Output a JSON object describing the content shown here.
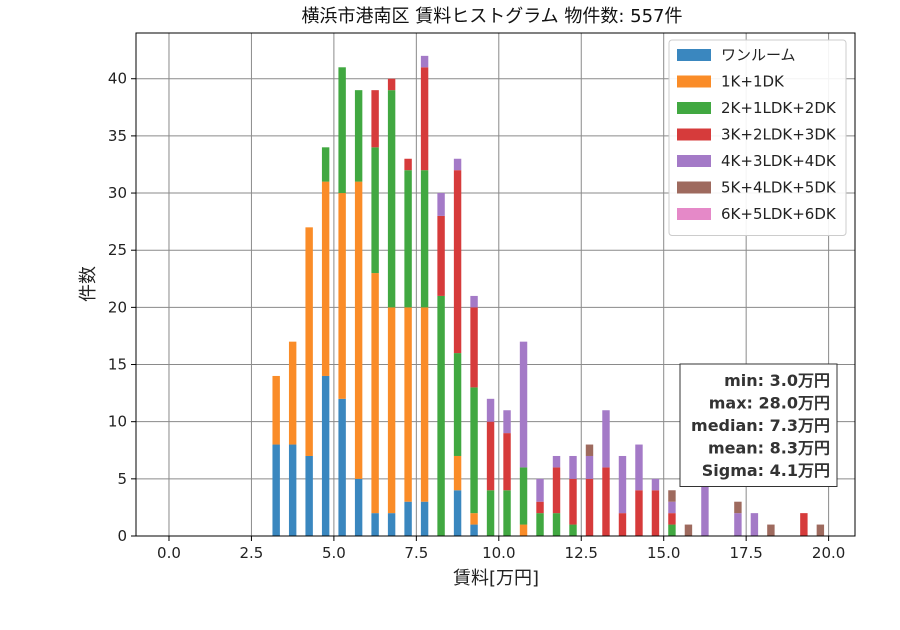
{
  "chart_data": {
    "type": "bar",
    "stacked": true,
    "title": "横浜市港南区 賃料ヒストグラム 物件数: 557件",
    "xlabel": "賃料[万円]",
    "ylabel": "件数",
    "xlim": [
      -1.0,
      20.8
    ],
    "ylim": [
      0,
      44
    ],
    "xticks": [
      0.0,
      2.5,
      5.0,
      7.5,
      10.0,
      12.5,
      15.0,
      17.5,
      20.0
    ],
    "xtick_labels": [
      "0.0",
      "2.5",
      "5.0",
      "7.5",
      "10.0",
      "12.5",
      "15.0",
      "17.5",
      "20.0"
    ],
    "yticks": [
      0,
      5,
      10,
      15,
      20,
      25,
      30,
      35,
      40
    ],
    "ytick_labels": [
      "0",
      "5",
      "10",
      "15",
      "20",
      "25",
      "30",
      "35",
      "40"
    ],
    "grid": true,
    "legend_position": "top-right",
    "bin_width": 0.25,
    "bar_width": 0.225,
    "x": [
      3.0,
      3.25,
      3.5,
      3.75,
      4.0,
      4.25,
      4.5,
      4.75,
      5.0,
      5.25,
      5.5,
      5.75,
      6.0,
      6.25,
      6.5,
      6.75,
      7.0,
      7.25,
      7.5,
      7.75,
      8.0,
      8.25,
      8.5,
      8.75,
      9.0,
      9.25,
      9.5,
      9.75,
      10.0,
      10.25,
      10.5,
      10.75,
      11.0,
      11.25,
      11.5,
      11.75,
      12.0,
      12.25,
      12.5,
      12.75,
      13.0,
      13.25,
      13.5,
      13.75,
      14.0,
      14.25,
      14.5,
      14.75,
      15.0,
      15.25,
      15.5,
      15.75,
      16.0,
      16.25,
      16.5,
      16.75,
      17.0,
      17.25,
      17.5,
      17.75,
      18.0,
      18.25,
      18.5,
      18.75,
      19.0,
      19.25,
      19.5,
      19.75
    ],
    "series": [
      {
        "name": "ワンルーム",
        "color": "#3a87bf",
        "values": [
          0,
          8,
          0,
          8,
          0,
          7,
          0,
          14,
          0,
          12,
          0,
          5,
          0,
          2,
          0,
          2,
          0,
          3,
          0,
          3,
          0,
          0,
          0,
          4,
          0,
          1,
          0,
          0,
          0,
          0,
          0,
          0,
          0,
          0,
          0,
          0,
          0,
          0,
          0,
          0,
          0,
          0,
          0,
          0,
          0,
          0,
          0,
          0,
          0,
          0,
          0,
          0,
          0,
          0,
          0,
          0,
          0,
          0,
          0,
          0,
          0,
          0,
          0,
          0,
          0,
          0,
          0,
          0
        ]
      },
      {
        "name": "1K+1DK",
        "color": "#fa8c28",
        "values": [
          0,
          6,
          0,
          9,
          0,
          20,
          0,
          17,
          0,
          18,
          0,
          26,
          0,
          21,
          0,
          18,
          0,
          17,
          0,
          17,
          0,
          0,
          0,
          3,
          0,
          1,
          0,
          0,
          0,
          0,
          0,
          1,
          0,
          0,
          0,
          0,
          0,
          0,
          0,
          0,
          0,
          0,
          0,
          0,
          0,
          0,
          0,
          0,
          0,
          0,
          0,
          0,
          0,
          0,
          0,
          0,
          0,
          0,
          0,
          0,
          0,
          0,
          0,
          0,
          0,
          0,
          0,
          0
        ]
      },
      {
        "name": "2K+1LDK+2DK",
        "color": "#41a841",
        "values": [
          0,
          0,
          0,
          0,
          0,
          0,
          0,
          3,
          0,
          11,
          0,
          8,
          0,
          11,
          0,
          19,
          0,
          12,
          0,
          12,
          0,
          21,
          0,
          9,
          0,
          11,
          0,
          4,
          0,
          4,
          0,
          5,
          0,
          2,
          0,
          2,
          0,
          1,
          0,
          0,
          0,
          0,
          0,
          0,
          0,
          0,
          0,
          0,
          0,
          1,
          0,
          0,
          0,
          0,
          0,
          0,
          0,
          0,
          0,
          0,
          0,
          0,
          0,
          0,
          0,
          0,
          0,
          0
        ]
      },
      {
        "name": "3K+2LDK+3DK",
        "color": "#d63b3b",
        "values": [
          0,
          0,
          0,
          0,
          0,
          0,
          0,
          0,
          0,
          0,
          0,
          0,
          0,
          5,
          0,
          1,
          0,
          1,
          0,
          9,
          0,
          7,
          0,
          16,
          0,
          7,
          0,
          6,
          0,
          5,
          0,
          0,
          0,
          1,
          0,
          4,
          0,
          4,
          0,
          5,
          0,
          6,
          0,
          2,
          0,
          4,
          0,
          4,
          0,
          1,
          0,
          0,
          0,
          0,
          0,
          0,
          0,
          0,
          0,
          0,
          0,
          0,
          0,
          0,
          0,
          2,
          0,
          0
        ]
      },
      {
        "name": "4K+3LDK+4DK",
        "color": "#a47ac7",
        "values": [
          0,
          0,
          0,
          0,
          0,
          0,
          0,
          0,
          0,
          0,
          0,
          0,
          0,
          0,
          0,
          0,
          0,
          0,
          0,
          1,
          0,
          2,
          0,
          1,
          0,
          1,
          0,
          2,
          0,
          2,
          0,
          11,
          0,
          2,
          0,
          1,
          0,
          2,
          0,
          2,
          0,
          5,
          0,
          5,
          0,
          4,
          0,
          1,
          0,
          1,
          0,
          0,
          0,
          5,
          0,
          0,
          0,
          2,
          0,
          2,
          0,
          0,
          0,
          0,
          0,
          0,
          0,
          0
        ]
      },
      {
        "name": "5K+4LDK+5DK",
        "color": "#9e6a5e",
        "values": [
          0,
          0,
          0,
          0,
          0,
          0,
          0,
          0,
          0,
          0,
          0,
          0,
          0,
          0,
          0,
          0,
          0,
          0,
          0,
          0,
          0,
          0,
          0,
          0,
          0,
          0,
          0,
          0,
          0,
          0,
          0,
          0,
          0,
          0,
          0,
          0,
          0,
          0,
          0,
          1,
          0,
          0,
          0,
          0,
          0,
          0,
          0,
          0,
          0,
          1,
          0,
          1,
          0,
          0,
          0,
          0,
          0,
          1,
          0,
          0,
          0,
          1,
          0,
          0,
          0,
          0,
          0,
          1
        ]
      },
      {
        "name": "6K+5LDK+6DK",
        "color": "#e589c8",
        "values": [
          0,
          0,
          0,
          0,
          0,
          0,
          0,
          0,
          0,
          0,
          0,
          0,
          0,
          0,
          0,
          0,
          0,
          0,
          0,
          0,
          0,
          0,
          0,
          0,
          0,
          0,
          0,
          0,
          0,
          0,
          0,
          0,
          0,
          0,
          0,
          0,
          0,
          0,
          0,
          0,
          0,
          0,
          0,
          0,
          0,
          0,
          0,
          0,
          0,
          0,
          0,
          0,
          0,
          0,
          0,
          0,
          0,
          0,
          0,
          0,
          0,
          0,
          0,
          0,
          0,
          0,
          0,
          0
        ]
      }
    ],
    "stats": [
      "min: 3.0万円",
      "max: 28.0万円",
      "median: 7.3万円",
      "mean: 8.3万円",
      "Sigma: 4.1万円"
    ]
  }
}
